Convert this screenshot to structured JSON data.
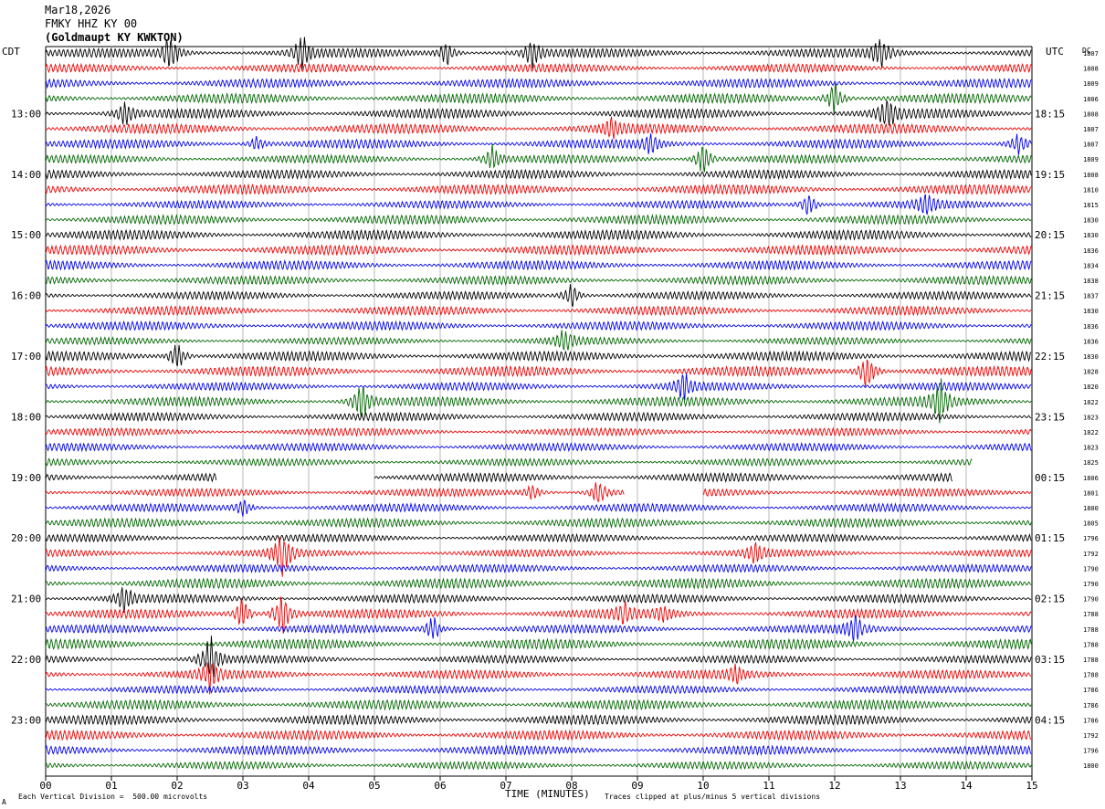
{
  "header": {
    "date": "Mar18,2026",
    "station": "FMKY HHZ KY 00",
    "location": "(Goldmaupt KY KWKTON)"
  },
  "left_axis_label": "CDT",
  "right_axis_label": "UTC",
  "dc_label": "DC",
  "footer": {
    "scale_note": "Each Vertical Division =  500.00 microvolts",
    "clip_note": "Traces clipped at plus/minus 5 vertical divisions",
    "corner_mark": "A"
  },
  "chart_data": {
    "type": "line",
    "xlabel": "TIME (MINUTES)",
    "xlim": [
      0,
      15
    ],
    "x_ticks": [
      "00",
      "01",
      "02",
      "03",
      "04",
      "05",
      "06",
      "07",
      "08",
      "09",
      "10",
      "11",
      "12",
      "13",
      "14",
      "15"
    ],
    "rows_per_hour": 4,
    "minutes_per_row": 15,
    "row_count": 48,
    "series_colors": [
      "#000000",
      "#ee0000",
      "#0000ee",
      "#006600"
    ],
    "left_hour_labels": [
      "13:00",
      "14:00",
      "15:00",
      "16:00",
      "17:00",
      "18:00",
      "19:00",
      "20:00",
      "21:00",
      "22:00",
      "23:00"
    ],
    "left_hour_label_rows": [
      4,
      8,
      12,
      16,
      20,
      24,
      28,
      32,
      36,
      40,
      44
    ],
    "right_hour_labels": [
      "18:15",
      "19:15",
      "20:15",
      "21:15",
      "22:15",
      "23:15",
      "00:15",
      "01:15",
      "02:15",
      "03:15",
      "04:15"
    ],
    "dc_offsets": [
      "1807",
      "1808",
      "1809",
      "1806",
      "1808",
      "1807",
      "1807",
      "1809",
      "1808",
      "1810",
      "1815",
      "1830",
      "1830",
      "1836",
      "1834",
      "1838",
      "1837",
      "1830",
      "1836",
      "1836",
      "1830",
      "1828",
      "1820",
      "1822",
      "1823",
      "1822",
      "1823",
      "1825",
      "1806",
      "1801",
      "1800",
      "1805",
      "1796",
      "1792",
      "1790",
      "1790",
      "1790",
      "1788",
      "1788",
      "1788",
      "1788",
      "1788",
      "1786",
      "1786",
      "1786",
      "1792",
      "1796",
      "1800"
    ],
    "gaps": [
      {
        "row": 27,
        "from_min": 14.1,
        "to_min": 15
      },
      {
        "row": 28,
        "from_min": 2.6,
        "to_min": 5.0
      },
      {
        "row": 28,
        "from_min": 13.8,
        "to_min": 15
      },
      {
        "row": 29,
        "from_min": 8.8,
        "to_min": 10.0
      }
    ],
    "events": [
      {
        "row": 0,
        "min": 1.9,
        "amp": 2.2
      },
      {
        "row": 0,
        "min": 3.9,
        "amp": 2.0
      },
      {
        "row": 0,
        "min": 6.1,
        "amp": 1.4
      },
      {
        "row": 0,
        "min": 7.4,
        "amp": 1.6
      },
      {
        "row": 0,
        "min": 12.7,
        "amp": 1.8
      },
      {
        "row": 3,
        "min": 12.0,
        "amp": 2.2
      },
      {
        "row": 4,
        "min": 1.2,
        "amp": 1.6
      },
      {
        "row": 4,
        "min": 12.8,
        "amp": 2.0
      },
      {
        "row": 5,
        "min": 8.6,
        "amp": 1.0
      },
      {
        "row": 6,
        "min": 3.2,
        "amp": 1.0
      },
      {
        "row": 6,
        "min": 9.2,
        "amp": 1.0
      },
      {
        "row": 6,
        "min": 14.8,
        "amp": 1.2
      },
      {
        "row": 7,
        "min": 6.8,
        "amp": 1.6
      },
      {
        "row": 7,
        "min": 10.0,
        "amp": 2.0
      },
      {
        "row": 10,
        "min": 11.6,
        "amp": 1.6
      },
      {
        "row": 10,
        "min": 13.4,
        "amp": 1.4
      },
      {
        "row": 16,
        "min": 8.0,
        "amp": 1.6
      },
      {
        "row": 19,
        "min": 7.9,
        "amp": 1.4
      },
      {
        "row": 20,
        "min": 2.0,
        "amp": 1.8
      },
      {
        "row": 21,
        "min": 12.5,
        "amp": 2.4
      },
      {
        "row": 22,
        "min": 9.7,
        "amp": 1.6
      },
      {
        "row": 23,
        "min": 4.8,
        "amp": 2.4
      },
      {
        "row": 23,
        "min": 13.6,
        "amp": 2.4
      },
      {
        "row": 29,
        "min": 8.4,
        "amp": 1.6
      },
      {
        "row": 29,
        "min": 7.4,
        "amp": 1.0
      },
      {
        "row": 30,
        "min": 3.0,
        "amp": 1.0
      },
      {
        "row": 33,
        "min": 3.6,
        "amp": 3.0
      },
      {
        "row": 33,
        "min": 10.8,
        "amp": 1.2
      },
      {
        "row": 36,
        "min": 1.2,
        "amp": 1.6
      },
      {
        "row": 37,
        "min": 3.0,
        "amp": 2.0
      },
      {
        "row": 37,
        "min": 3.6,
        "amp": 3.0
      },
      {
        "row": 37,
        "min": 8.8,
        "amp": 1.2
      },
      {
        "row": 37,
        "min": 9.4,
        "amp": 1.0
      },
      {
        "row": 38,
        "min": 5.9,
        "amp": 1.6
      },
      {
        "row": 38,
        "min": 12.3,
        "amp": 1.6
      },
      {
        "row": 40,
        "min": 2.5,
        "amp": 3.0
      },
      {
        "row": 41,
        "min": 2.5,
        "amp": 1.6
      },
      {
        "row": 41,
        "min": 10.5,
        "amp": 1.0
      }
    ]
  }
}
